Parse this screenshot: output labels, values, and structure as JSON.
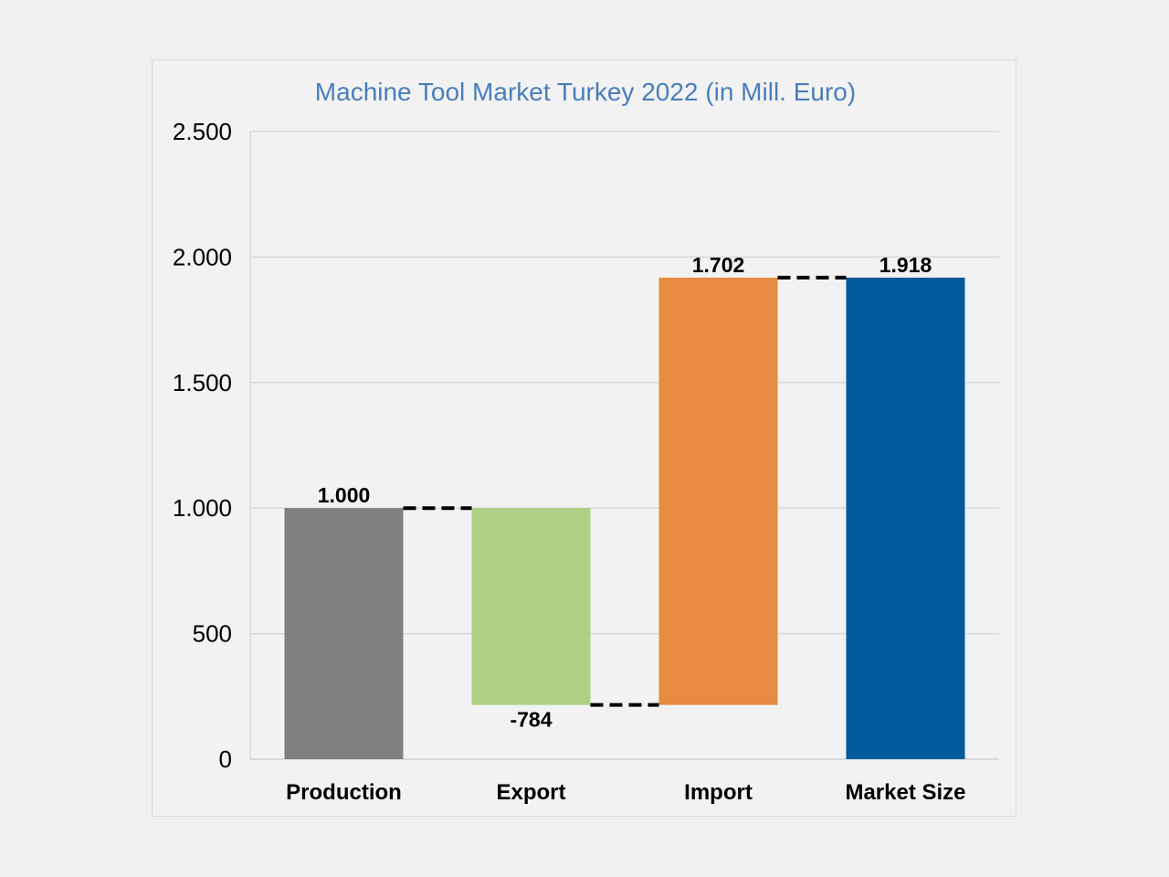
{
  "chart_data": {
    "type": "bar",
    "subtype": "waterfall",
    "title": "Machine Tool Market Turkey 2022 (in Mill. Euro)",
    "xlabel": "",
    "ylabel": "",
    "categories": [
      "Production",
      "Export",
      "Import",
      "Market Size"
    ],
    "values": [
      1000,
      -784,
      1702,
      1918
    ],
    "data_labels": [
      "1.000",
      "-784",
      "1.702",
      "1.918"
    ],
    "bar_kinds": [
      "total",
      "delta",
      "delta",
      "total"
    ],
    "colors": [
      "#7f7f7f",
      "#aed084",
      "#e68b3f",
      "#005a9c"
    ],
    "ylim": [
      0,
      2500
    ],
    "yticks": [
      0,
      500,
      1000,
      1500,
      2000,
      2500
    ],
    "ytick_labels": [
      "0",
      "500",
      "1.000",
      "1.500",
      "2.000",
      "2.500"
    ],
    "grid": true,
    "connectors": "dashed",
    "legend": "none"
  }
}
